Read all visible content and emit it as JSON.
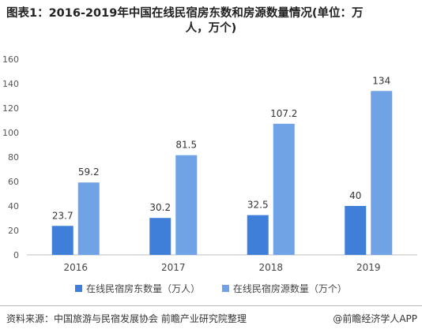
{
  "title_line1": "图表1：2016-2019年中国在线民宿房东数和房源数量情况(单位：万",
  "title_line2": "人，万个)",
  "source": "资料来源：中国旅游与民宿发展协会 前瞻产业研究院整理",
  "brand": "@前瞻经济学人APP",
  "chart_data": {
    "type": "bar",
    "categories": [
      "2016",
      "2017",
      "2018",
      "2019"
    ],
    "series": [
      {
        "name": "在线民宿房东数量（万人）",
        "values": [
          23.7,
          30.2,
          32.5,
          40
        ],
        "labels": [
          "23.7",
          "30.2",
          "32.5",
          "40"
        ],
        "color": "#3f7fda"
      },
      {
        "name": "在线民宿房源数量（万个）",
        "values": [
          59.2,
          81.5,
          107.2,
          134
        ],
        "labels": [
          "59.2",
          "81.5",
          "107.2",
          "134"
        ],
        "color": "#6fa3e6"
      }
    ],
    "yticks": [
      "0",
      "20",
      "40",
      "60",
      "80",
      "100",
      "120",
      "140",
      "160"
    ],
    "ylim": [
      0,
      160
    ],
    "grid": false,
    "legend": "bottom"
  }
}
